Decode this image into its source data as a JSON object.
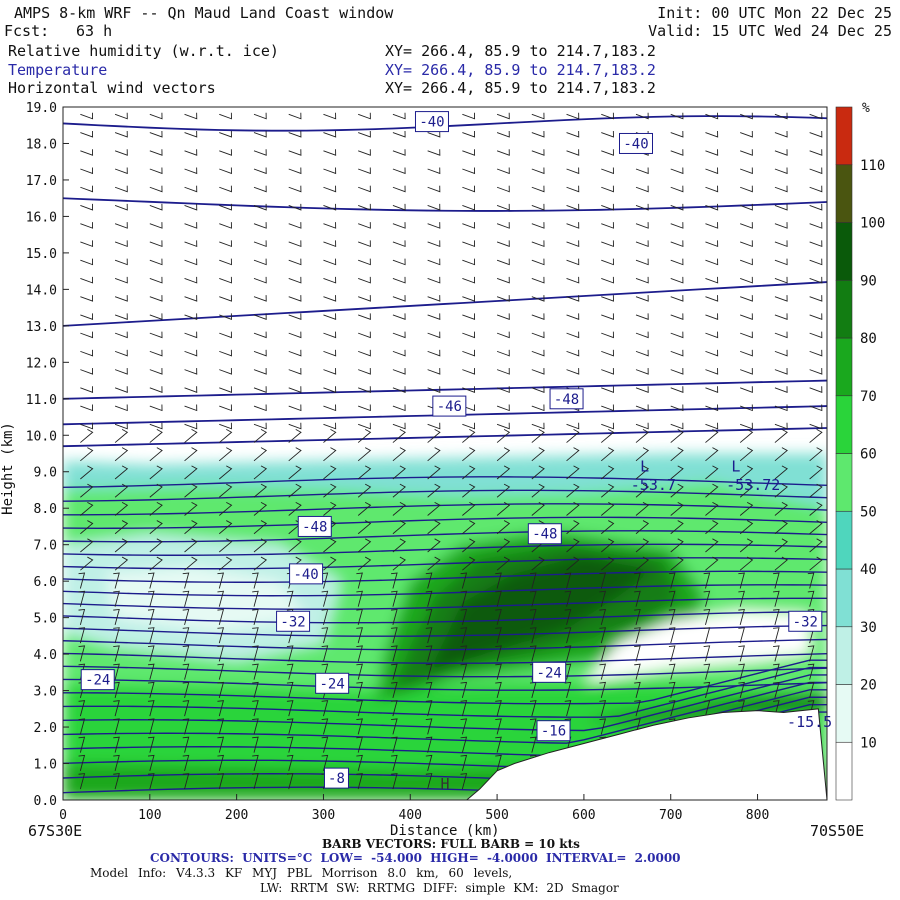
{
  "header": {
    "title": "AMPS 8-km WRF -- Qn Maud Land Coast window",
    "fcst_label": "Fcst:",
    "fcst_value": "63 h",
    "init": "Init: 00 UTC Mon 22 Dec 25",
    "valid": "Valid: 15 UTC Wed 24 Dec 25",
    "fields": [
      {
        "name": "Relative humidity (w.r.t. ice)",
        "xy": "XY= 266.4, 85.9 to 214.7,183.2"
      },
      {
        "name": "Temperature",
        "xy": "XY= 266.4, 85.9 to 214.7,183.2"
      },
      {
        "name": "Horizontal wind vectors",
        "xy": "XY= 266.4, 85.9 to 214.7,183.2"
      }
    ]
  },
  "colors": {
    "temperature_contour": "#1c1c8c",
    "field_blue": "#2a2aa8",
    "terrain": "#ffffff",
    "rh_levels": [
      "#ffffff",
      "#e6faf4",
      "#bff0e6",
      "#80e0d4",
      "#4fd6bd",
      "#5ee86e",
      "#2ad43a",
      "#1aa81e",
      "#127d12",
      "#0a5a0a",
      "#4a5510",
      "#c92a10"
    ]
  },
  "chart_data": {
    "type": "contour",
    "xlabel": "Distance (km)",
    "ylabel": "Height (km)",
    "xlim": [
      0,
      880
    ],
    "ylim": [
      0,
      19
    ],
    "x_ticks": [
      0,
      100,
      200,
      300,
      400,
      500,
      600,
      700,
      800
    ],
    "y_ticks": [
      "0.0",
      "1.0",
      "2.0",
      "3.0",
      "4.0",
      "5.0",
      "6.0",
      "7.0",
      "8.0",
      "9.0",
      "10.0",
      "11.0",
      "12.0",
      "13.0",
      "14.0",
      "15.0",
      "16.0",
      "17.0",
      "18.0",
      "19.0"
    ],
    "left_endpoint": "67S30E",
    "right_endpoint": "70S50E",
    "colorbar": {
      "unit": "%",
      "levels": [
        10,
        20,
        30,
        40,
        50,
        60,
        70,
        80,
        90,
        100,
        110
      ]
    },
    "contour_labels": [
      {
        "text": "-40",
        "x": 425,
        "y": 18.6
      },
      {
        "text": "-40",
        "x": 660,
        "y": 18.0
      },
      {
        "text": "-46",
        "x": 445,
        "y": 10.8
      },
      {
        "text": "-48",
        "x": 580,
        "y": 11.0
      },
      {
        "text": "-48",
        "x": 290,
        "y": 7.5
      },
      {
        "text": "-48",
        "x": 555,
        "y": 7.3
      },
      {
        "text": "-40",
        "x": 280,
        "y": 6.2
      },
      {
        "text": "-32",
        "x": 265,
        "y": 4.9
      },
      {
        "text": "-24",
        "x": 40,
        "y": 3.3
      },
      {
        "text": "-24",
        "x": 310,
        "y": 3.2
      },
      {
        "text": "-24",
        "x": 560,
        "y": 3.5
      },
      {
        "text": "-16",
        "x": 565,
        "y": 1.9
      },
      {
        "text": "-8",
        "x": 315,
        "y": 0.6
      },
      {
        "text": "-32",
        "x": 855,
        "y": 4.9
      }
    ],
    "annotations": [
      {
        "text": "L",
        "x": 670,
        "y": 9.0
      },
      {
        "text": "-53.7",
        "x": 680,
        "y": 8.5
      },
      {
        "text": "L",
        "x": 775,
        "y": 9.0
      },
      {
        "text": "-53.72",
        "x": 795,
        "y": 8.5
      },
      {
        "text": "-15.5",
        "x": 860,
        "y": 2.0
      },
      {
        "text": "H",
        "x": 440,
        "y": 0.3
      }
    ],
    "terrain_profile": {
      "x": [
        465,
        480,
        500,
        520,
        560,
        600,
        640,
        680,
        720,
        760,
        800,
        830,
        870
      ],
      "height": [
        0.0,
        0.3,
        0.8,
        1.0,
        1.3,
        1.55,
        1.8,
        2.05,
        2.25,
        2.4,
        2.45,
        2.4,
        2.5
      ]
    }
  },
  "footer": {
    "barb_caption": "BARB VECTORS: FULL BARB = 10 kts",
    "contours_caption": "CONTOURS: UNITS=°C LOW= -54.000 HIGH= -4.0000 INTERVAL= 2.0000",
    "model_info": "Model Info: V4.3.3 KF MYJ PBL Morrison 8.0 km, 60 levels,",
    "model_info2": "LW: RRTM SW: RRTMG DIFF: simple KM: 2D Smagor"
  }
}
